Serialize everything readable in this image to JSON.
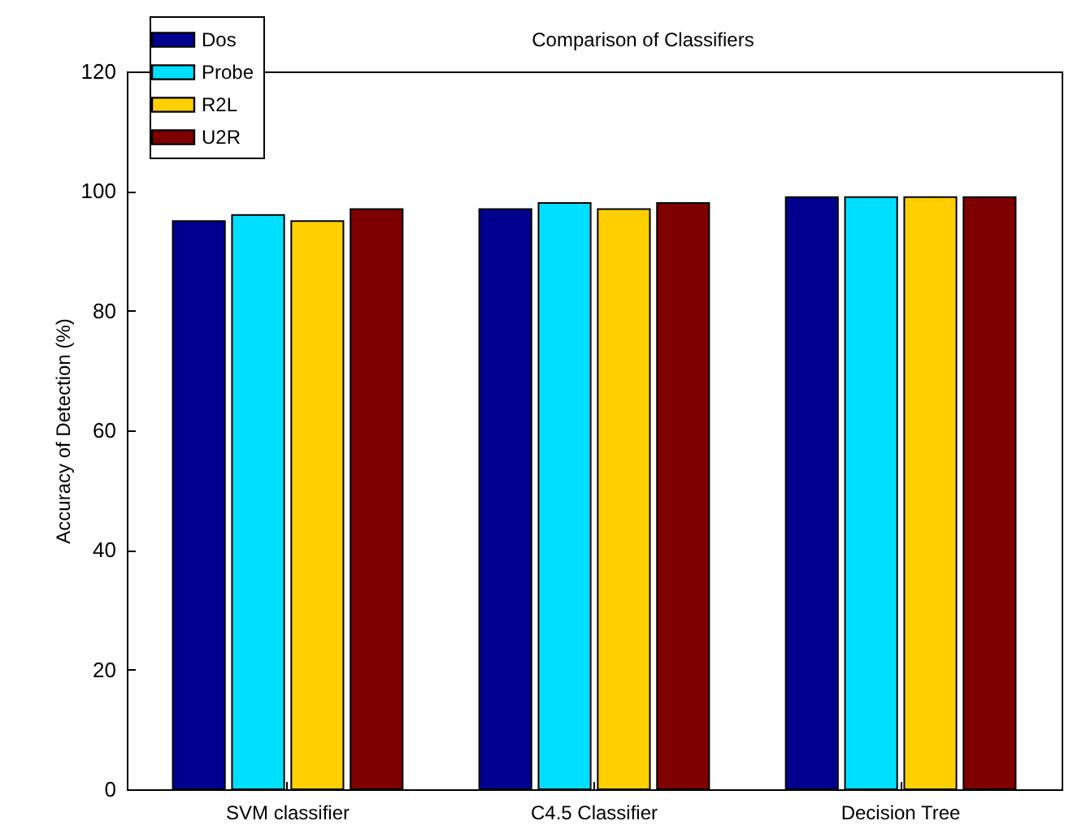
{
  "chart_data": {
    "type": "bar",
    "title": "Comparison of Classifiers",
    "ylabel": "Accuracy of Detection (%)",
    "categories": [
      "SVM classifier",
      "C4.5 Classifier",
      "Decision Tree"
    ],
    "series": [
      {
        "name": "Dos",
        "color": "#00008f",
        "values": [
          95,
          97,
          99
        ]
      },
      {
        "name": "Probe",
        "color": "#00dfff",
        "values": [
          96,
          98,
          99
        ]
      },
      {
        "name": "R2L",
        "color": "#ffcf00",
        "values": [
          95,
          97,
          99
        ]
      },
      {
        "name": "U2R",
        "color": "#7f0000",
        "values": [
          97,
          98,
          99
        ]
      }
    ],
    "ylim": [
      0,
      120
    ],
    "yticks": [
      0,
      20,
      40,
      60,
      80,
      100,
      120
    ],
    "legend": "top left"
  }
}
